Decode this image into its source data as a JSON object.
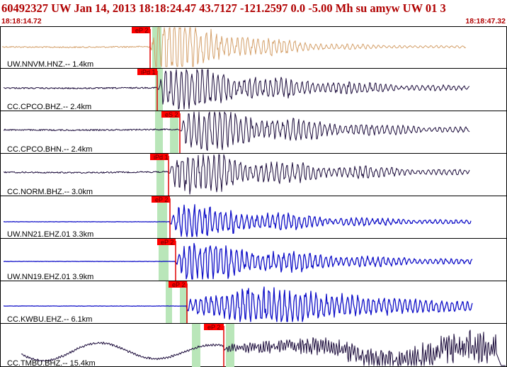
{
  "header": {
    "title": "60492327 UW Jan 14, 2013 18:18:24.47    43.7127 -121.2597  0.0 -5.00 Mh su amyw UW 01   3",
    "time_start": "18:18:14.72",
    "time_end": "18:18:47.32"
  },
  "colors": {
    "header_text": "#b00000",
    "pick_box": "#ff0000",
    "pick_line": "#e00000",
    "pick_window": "#b9e6b9"
  },
  "traces": [
    {
      "label": "UW.NNVM.HNZ.-- 1.4km",
      "color": "#d4a06a",
      "picks": [
        {
          "label": "eP 2"
        }
      ]
    },
    {
      "label": "CC.CPCO.BHZ.-- 2.4km",
      "color": "#1a0a3a",
      "picks": [
        {
          "label": "iPd 1"
        }
      ]
    },
    {
      "label": "CC.CPCO.BHN.-- 2.4km",
      "color": "#1a0a3a",
      "picks": [
        {
          "label": "eS 2"
        }
      ]
    },
    {
      "label": "CC.NORM.BHZ.-- 3.0km",
      "color": "#1a0a3a",
      "picks": [
        {
          "label": "iPd 1"
        }
      ]
    },
    {
      "label": "UW.NN21.EHZ.01 3.3km",
      "color": "#1010c8",
      "picks": [
        {
          "label": "eP 2"
        }
      ]
    },
    {
      "label": "UW.NN19.EHZ.01 3.9km",
      "color": "#1010c8",
      "picks": [
        {
          "label": "eP 2"
        }
      ]
    },
    {
      "label": "CC.KWBU.EHZ.-- 6.1km",
      "color": "#1010c8",
      "picks": [
        {
          "label": "eP 2"
        }
      ]
    },
    {
      "label": "CC.TMBU.BHZ.-- 15.4km",
      "color": "#1a0a3a",
      "picks": [
        {
          "label": "eP 2"
        }
      ]
    }
  ]
}
